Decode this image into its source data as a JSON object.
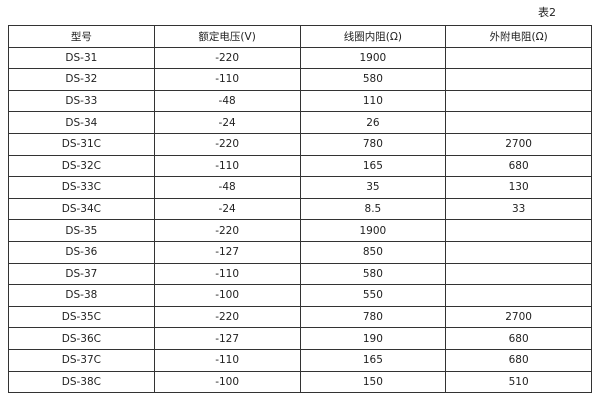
{
  "caption": "表2",
  "headers": [
    "型号",
    "额定电压(V)",
    "线圈内阻(Ω)",
    "外附电阻(Ω)"
  ],
  "rows": [
    [
      "DS-31",
      "-220",
      "1900",
      ""
    ],
    [
      "DS-32",
      "-110",
      "580",
      ""
    ],
    [
      "DS-33",
      "-48",
      "110",
      ""
    ],
    [
      "DS-34",
      "-24",
      "26",
      ""
    ],
    [
      "DS-31C",
      "-220",
      "780",
      "2700"
    ],
    [
      "DS-32C",
      "-110",
      "165",
      "680"
    ],
    [
      "DS-33C",
      "-48",
      "35",
      "130"
    ],
    [
      "DS-34C",
      "-24",
      "8.5",
      "33"
    ],
    [
      "DS-35",
      "-220",
      "1900",
      ""
    ],
    [
      "DS-36",
      "-127",
      "850",
      ""
    ],
    [
      "DS-37",
      "-110",
      "580",
      ""
    ],
    [
      "DS-38",
      "-100",
      "550",
      ""
    ],
    [
      "DS-35C",
      "-220",
      "780",
      "2700"
    ],
    [
      "DS-36C",
      "-127",
      "190",
      "680"
    ],
    [
      "DS-37C",
      "-110",
      "165",
      "680"
    ],
    [
      "DS-38C",
      "-100",
      "150",
      "510"
    ]
  ]
}
